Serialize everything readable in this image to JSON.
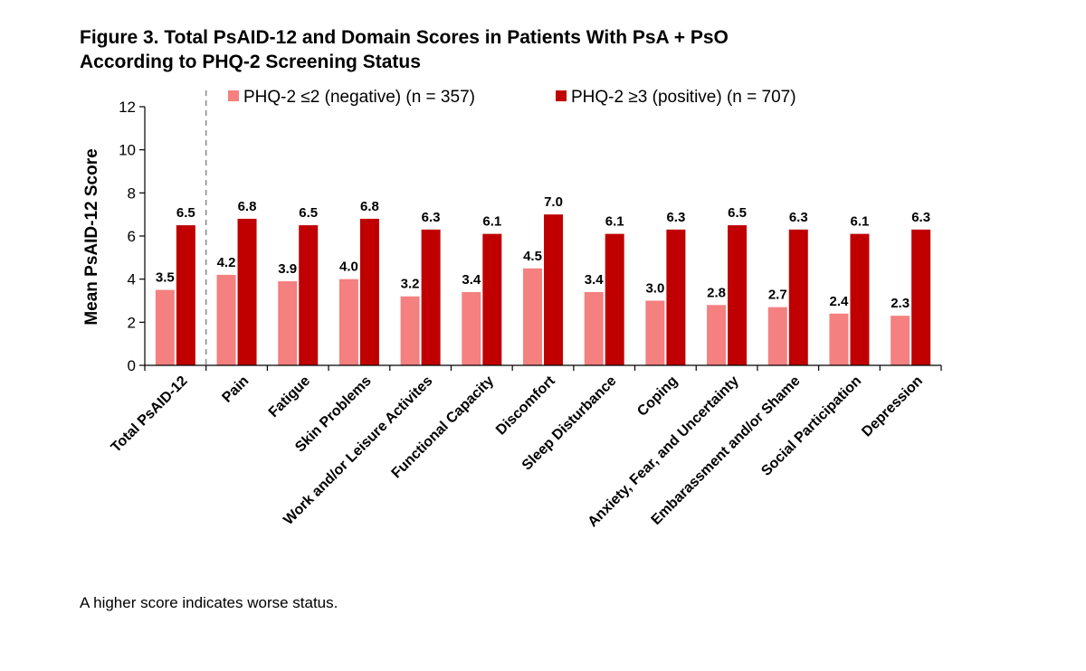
{
  "chart_data": {
    "type": "bar",
    "title_line1": "Figure 3. Total PsAID-12 and Domain Scores in Patients With PsA + PsO",
    "title_line2": "According to PHQ-2 Screening Status",
    "ylabel": "Mean PsAID-12 Score",
    "xlabel": "",
    "ylim": [
      0,
      12
    ],
    "yticks": [
      0,
      2,
      4,
      6,
      8,
      10,
      12
    ],
    "grid": false,
    "legend_position": "top",
    "categories": [
      "Total PsAID-12",
      "Pain",
      "Fatigue",
      "Skin Problems",
      "Work and/or Leisure Activites",
      "Functional Capacity",
      "Discomfort",
      "Sleep Disturbance",
      "Coping",
      "Anxiety, Fear, and Uncertainty",
      "Embarassment and/or Shame",
      "Social Participation",
      "Depression"
    ],
    "series": [
      {
        "name": "PHQ-2 ≤2 (negative) (n = 357)",
        "color": "#f48080",
        "values": [
          3.5,
          4.2,
          3.9,
          4.0,
          3.2,
          3.4,
          4.5,
          3.4,
          3.0,
          2.8,
          2.7,
          2.4,
          2.3
        ],
        "labels": [
          "3.5",
          "4.2",
          "3.9",
          "4.0",
          "3.2",
          "3.4",
          "4.5",
          "3.4",
          "3.0",
          "2.8",
          "2.7",
          "2.4",
          "2.3"
        ]
      },
      {
        "name": "PHQ-2 ≥3 (positive) (n = 707)",
        "color": "#c00000",
        "values": [
          6.5,
          6.8,
          6.5,
          6.8,
          6.3,
          6.1,
          7.0,
          6.1,
          6.3,
          6.5,
          6.3,
          6.1,
          6.3
        ],
        "labels": [
          "6.5",
          "6.8",
          "6.5",
          "6.8",
          "6.3",
          "6.1",
          "7.0",
          "6.1",
          "6.3",
          "6.5",
          "6.3",
          "6.1",
          "6.3"
        ]
      }
    ],
    "separator_after_category": 0
  },
  "footnote": "A higher score indicates worse status."
}
